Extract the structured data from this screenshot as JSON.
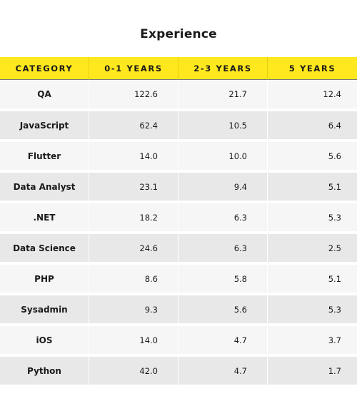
{
  "chart_data": {
    "type": "table",
    "title": "Experience",
    "columns": [
      "CATEGORY",
      "0-1 YEARS",
      "2-3 YEARS",
      "5 YEARS"
    ],
    "rows": [
      [
        "QA",
        "122.6",
        "21.7",
        "12.4"
      ],
      [
        "JavaScript",
        "62.4",
        "10.5",
        "6.4"
      ],
      [
        "Flutter",
        "14.0",
        "10.0",
        "5.6"
      ],
      [
        "Data Analyst",
        "23.1",
        "9.4",
        "5.1"
      ],
      [
        ".NET",
        "18.2",
        "6.3",
        "5.3"
      ],
      [
        "Data Science",
        "24.6",
        "6.3",
        "2.5"
      ],
      [
        "PHP",
        "8.6",
        "5.8",
        "5.1"
      ],
      [
        "Sysadmin",
        "9.3",
        "5.6",
        "5.3"
      ],
      [
        "iOS",
        "14.0",
        "4.7",
        "3.7"
      ],
      [
        "Python",
        "42.0",
        "4.7",
        "1.7"
      ]
    ]
  },
  "colors": {
    "header_background": "#ffe81e",
    "row_light": "#f6f6f6",
    "row_dark": "#e8e8e8"
  }
}
